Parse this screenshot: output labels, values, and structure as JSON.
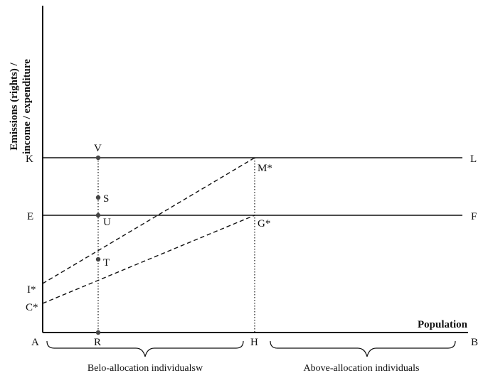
{
  "axes": {
    "y_label_line1": "Emissions (rights) /",
    "y_label_line2": "income / expenditure",
    "x_label": "Population"
  },
  "points": {
    "A": "A",
    "B": "B",
    "R": "R",
    "H": "H",
    "K": "K",
    "L": "L",
    "E": "E",
    "F": "F",
    "V": "V",
    "S": "S",
    "U": "U",
    "T": "T",
    "M": "M*",
    "G": "G*",
    "I": "I*",
    "C": "C*"
  },
  "groups": {
    "below": "Belo-allocation individualsw",
    "above": "Above-allocation individuals"
  }
}
